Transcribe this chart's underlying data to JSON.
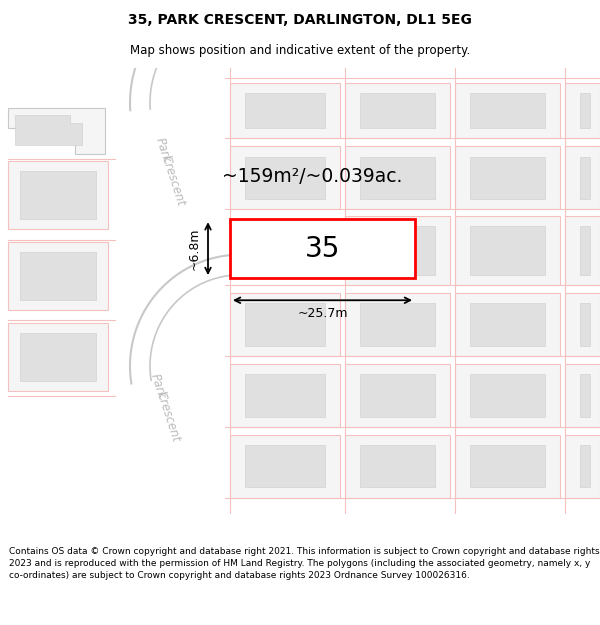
{
  "title": "35, PARK CRESCENT, DARLINGTON, DL1 5EG",
  "subtitle": "Map shows position and indicative extent of the property.",
  "footer": "Contains OS data © Crown copyright and database right 2021. This information is subject to Crown copyright and database rights 2023 and is reproduced with the permission of HM Land Registry. The polygons (including the associated geometry, namely x, y co-ordinates) are subject to Crown copyright and database rights 2023 Ordnance Survey 100026316.",
  "area_text": "~159m²/~0.039ac.",
  "width_text": "~25.7m",
  "height_text": "~6.8m",
  "number_text": "35",
  "road_color": "#f5c0c0",
  "plot_fill": "#f5f5f5",
  "inner_fill": "#e0e0e0",
  "road_label_color": "#bbbbbb",
  "prop_outline": "#ff0000",
  "bg": "#ffffff",
  "gray_road": "#c8c8c8",
  "title_fontsize": 10,
  "subtitle_fontsize": 8.5,
  "footer_fontsize": 6.5
}
